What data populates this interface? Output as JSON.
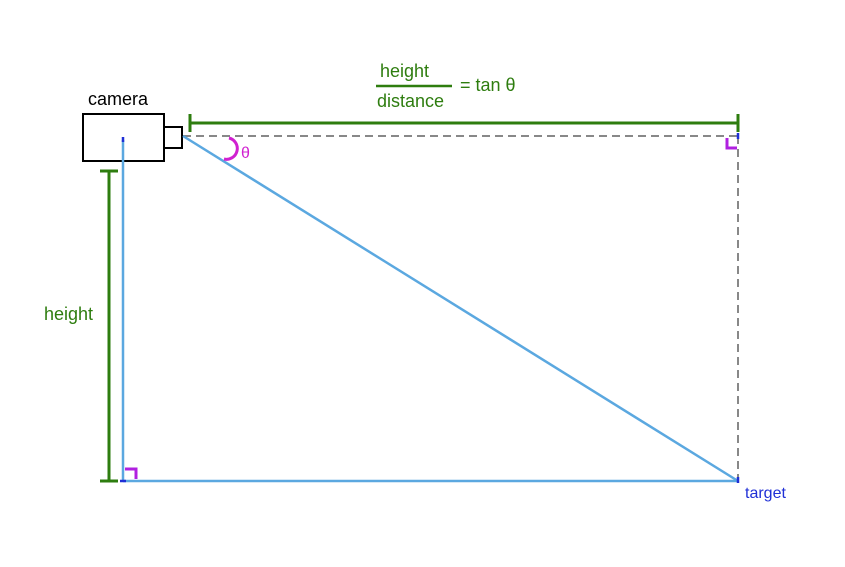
{
  "labels": {
    "camera": "camera",
    "height": "height",
    "theta": "θ",
    "target": "target"
  },
  "formula": {
    "numerator": "height",
    "denominator": "distance",
    "equals": "= tan θ"
  },
  "colors": {
    "green": "#2e7d0f",
    "blue_line": "#5ba8e0",
    "magenta": "#d020d0",
    "grey_dash": "#888888",
    "target_blue": "#1f2fd6",
    "black": "#000000"
  }
}
